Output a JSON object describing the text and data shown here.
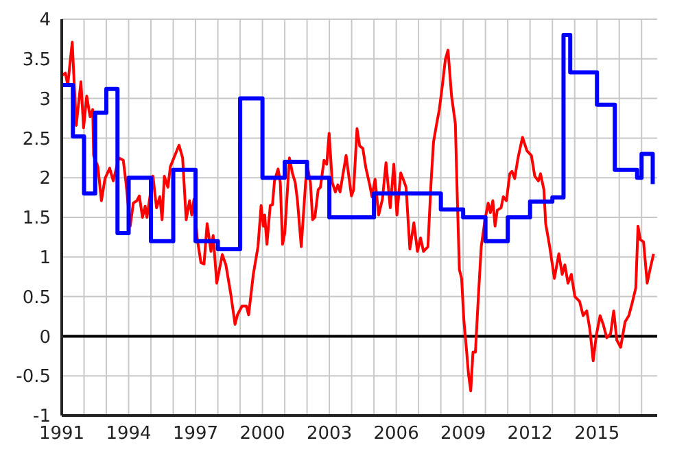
{
  "chart_data": {
    "type": "line",
    "xlim": [
      1991,
      2017.7
    ],
    "ylim": [
      -1,
      4
    ],
    "xticks": [
      1991,
      {
        "value": 1992,
        "label": null
      },
      {
        "value": 1993,
        "label": null
      },
      1994,
      {
        "value": 1995,
        "label": null
      },
      {
        "value": 1996,
        "label": null
      },
      1997,
      {
        "value": 1998,
        "label": null
      },
      {
        "value": 1999,
        "label": null
      },
      2000,
      {
        "value": 2001,
        "label": null
      },
      {
        "value": 2002,
        "label": null
      },
      2003,
      {
        "value": 2004,
        "label": null
      },
      {
        "value": 2005,
        "label": null
      },
      2006,
      {
        "value": 2007,
        "label": null
      },
      {
        "value": 2008,
        "label": null
      },
      2009,
      {
        "value": 2010,
        "label": null
      },
      {
        "value": 2011,
        "label": null
      },
      2012,
      {
        "value": 2013,
        "label": null
      },
      {
        "value": 2014,
        "label": null
      },
      2015,
      {
        "value": 2016,
        "label": null
      },
      {
        "value": 2017,
        "label": null
      }
    ],
    "yticks": [
      -1,
      -0.5,
      0,
      0.5,
      1,
      1.5,
      2,
      2.5,
      3,
      3.5,
      4
    ],
    "grid": true,
    "ref_lines": [
      {
        "axis": "y",
        "value": 0,
        "color": "#000000"
      }
    ],
    "series": [
      {
        "type": "line",
        "color": "#ff0000",
        "x": [
          1991.0,
          1991.16,
          1991.27,
          1991.47,
          1991.65,
          1991.86,
          1991.98,
          1992.12,
          1992.27,
          1992.39,
          1992.43,
          1992.62,
          1992.78,
          1992.94,
          1993.15,
          1993.31,
          1993.56,
          1993.76,
          1993.88,
          1994.07,
          1994.21,
          1994.37,
          1994.48,
          1994.62,
          1994.74,
          1994.82,
          1995.09,
          1995.25,
          1995.4,
          1995.5,
          1995.6,
          1995.76,
          1995.87,
          1996.26,
          1996.42,
          1996.58,
          1996.73,
          1996.83,
          1996.93,
          1997.07,
          1997.24,
          1997.38,
          1997.52,
          1997.69,
          1997.79,
          1997.95,
          1998.2,
          1998.36,
          1998.57,
          1998.77,
          1998.88,
          1999.08,
          1999.28,
          1999.38,
          1999.59,
          1999.8,
          1999.94,
          2000.04,
          2000.1,
          2000.2,
          2000.35,
          2000.45,
          2000.54,
          2000.7,
          2000.8,
          2000.9,
          2001.0,
          2001.21,
          2001.35,
          2001.47,
          2001.57,
          2001.74,
          2001.94,
          2002.04,
          2002.15,
          2002.25,
          2002.35,
          2002.5,
          2002.6,
          2002.76,
          2002.88,
          2002.99,
          2003.13,
          2003.27,
          2003.38,
          2003.48,
          2003.75,
          2003.99,
          2004.09,
          2004.24,
          2004.36,
          2004.5,
          2004.64,
          2004.81,
          2004.91,
          2005.05,
          2005.21,
          2005.38,
          2005.54,
          2005.73,
          2005.89,
          2006.03,
          2006.2,
          2006.34,
          2006.44,
          2006.61,
          2006.79,
          2006.95,
          2007.09,
          2007.22,
          2007.42,
          2007.56,
          2007.67,
          2007.83,
          2007.93,
          2008.07,
          2008.2,
          2008.32,
          2008.48,
          2008.65,
          2008.73,
          2008.83,
          2008.93,
          2009.03,
          2009.14,
          2009.24,
          2009.34,
          2009.44,
          2009.55,
          2009.67,
          2009.81,
          2009.98,
          2010.12,
          2010.22,
          2010.33,
          2010.43,
          2010.53,
          2010.7,
          2010.8,
          2010.94,
          2011.09,
          2011.19,
          2011.31,
          2011.46,
          2011.66,
          2011.86,
          2012.06,
          2012.21,
          2012.37,
          2012.47,
          2012.62,
          2012.7,
          2012.88,
          2013.09,
          2013.29,
          2013.44,
          2013.56,
          2013.7,
          2013.85,
          2014.01,
          2014.22,
          2014.38,
          2014.54,
          2014.68,
          2014.83,
          2014.97,
          2015.14,
          2015.28,
          2015.44,
          2015.61,
          2015.75,
          2015.89,
          2016.06,
          2016.26,
          2016.43,
          2016.57,
          2016.74,
          2016.84,
          2016.94,
          2017.09,
          2017.25,
          2017.4,
          2017.54
        ],
        "values": [
          3.29,
          3.32,
          3.17,
          3.71,
          2.66,
          3.21,
          2.63,
          3.03,
          2.77,
          2.86,
          2.28,
          2.14,
          1.71,
          1.99,
          2.12,
          1.96,
          2.25,
          2.22,
          1.94,
          1.39,
          1.68,
          1.71,
          1.77,
          1.5,
          1.64,
          1.5,
          2.02,
          1.62,
          1.76,
          1.47,
          2.02,
          1.88,
          2.14,
          2.41,
          2.25,
          1.47,
          1.71,
          1.53,
          1.73,
          1.24,
          0.93,
          0.91,
          1.42,
          1.07,
          1.27,
          0.67,
          1.03,
          0.9,
          0.55,
          0.15,
          0.27,
          0.38,
          0.38,
          0.27,
          0.78,
          1.13,
          1.65,
          1.39,
          1.53,
          1.16,
          1.65,
          1.66,
          1.96,
          2.11,
          1.94,
          1.16,
          1.3,
          2.25,
          2.05,
          1.94,
          1.71,
          1.13,
          1.96,
          2.11,
          1.94,
          1.47,
          1.5,
          1.85,
          1.88,
          2.22,
          2.17,
          2.56,
          1.94,
          1.82,
          1.91,
          1.82,
          2.28,
          1.77,
          1.85,
          2.62,
          2.4,
          2.37,
          2.12,
          1.91,
          1.76,
          1.98,
          1.53,
          1.73,
          2.19,
          1.62,
          2.17,
          1.53,
          2.06,
          1.96,
          1.88,
          1.1,
          1.43,
          1.07,
          1.24,
          1.07,
          1.13,
          1.94,
          2.45,
          2.71,
          2.86,
          3.17,
          3.49,
          3.61,
          3.03,
          2.68,
          1.82,
          0.84,
          0.73,
          0.21,
          -0.14,
          -0.48,
          -0.69,
          -0.2,
          -0.2,
          0.44,
          1.13,
          1.47,
          1.68,
          1.56,
          1.71,
          1.39,
          1.59,
          1.62,
          1.76,
          1.71,
          2.05,
          2.08,
          1.99,
          2.25,
          2.51,
          2.34,
          2.28,
          2.02,
          1.96,
          2.05,
          1.85,
          1.42,
          1.13,
          0.73,
          1.04,
          0.78,
          0.9,
          0.67,
          0.78,
          0.5,
          0.44,
          0.26,
          0.32,
          0.09,
          -0.31,
          0.01,
          0.26,
          0.15,
          -0.02,
          0.03,
          0.32,
          -0.05,
          -0.14,
          0.18,
          0.26,
          0.41,
          0.61,
          1.39,
          1.22,
          1.19,
          0.67,
          0.87,
          1.04
        ]
      },
      {
        "type": "step",
        "color": "#0000ff",
        "x": [
          1991.0,
          1991.5,
          1992.0,
          1992.5,
          1993.0,
          1993.5,
          1994.0,
          1995.0,
          1996.0,
          1997.0,
          1998.0,
          1999.0,
          2000.0,
          2001.0,
          2002.0,
          2003.0,
          2005.0,
          2008.0,
          2009.0,
          2010.0,
          2011.0,
          2012.0,
          2013.0,
          2013.5,
          2013.8,
          2015.0,
          2015.8,
          2016.8,
          2017.0,
          2017.5
        ],
        "values": [
          3.17,
          2.52,
          1.8,
          2.82,
          3.12,
          1.3,
          2.0,
          1.2,
          2.1,
          1.2,
          1.1,
          3.0,
          2.0,
          2.2,
          2.0,
          1.5,
          1.8,
          1.6,
          1.5,
          1.2,
          1.5,
          1.7,
          1.75,
          3.8,
          3.33,
          2.92,
          2.1,
          2.0,
          2.3,
          1.92
        ]
      }
    ]
  }
}
